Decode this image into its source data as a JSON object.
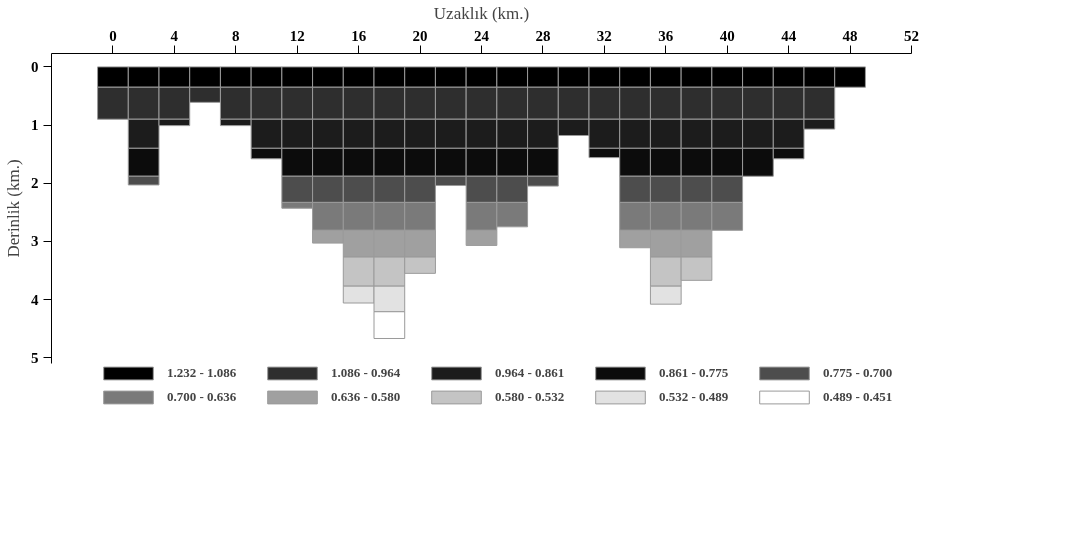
{
  "chart_data": {
    "type": "bar",
    "stacked": true,
    "xlabel": "Uzaklık (km.)",
    "ylabel": "Derinlik (km.)",
    "x": [
      0,
      2,
      4,
      6,
      8,
      10,
      12,
      14,
      16,
      18,
      20,
      22,
      24,
      26,
      28,
      30,
      32,
      34,
      36,
      38,
      40,
      42,
      44,
      46,
      48
    ],
    "xlim": [
      -4,
      52
    ],
    "xticks": [
      0,
      4,
      8,
      12,
      16,
      20,
      24,
      28,
      32,
      36,
      40,
      44,
      48,
      52
    ],
    "ylim": [
      5.1,
      -0.23
    ],
    "yticks": [
      0,
      1,
      2,
      3,
      4,
      5
    ],
    "grid": false,
    "legend": "bottom",
    "series": [
      {
        "name": "1.232 - 1.086",
        "color": "#000000",
        "values": [
          0.35,
          0.35,
          0.35,
          0.35,
          0.35,
          0.35,
          0.35,
          0.35,
          0.35,
          0.35,
          0.35,
          0.35,
          0.35,
          0.35,
          0.35,
          0.35,
          0.35,
          0.35,
          0.35,
          0.35,
          0.35,
          0.35,
          0.35,
          0.35,
          0.35
        ]
      },
      {
        "name": "1.086 - 0.964",
        "color": "#2e2e2e",
        "values": [
          0.55,
          0.55,
          0.55,
          0.26,
          0.55,
          0.55,
          0.55,
          0.55,
          0.55,
          0.55,
          0.55,
          0.55,
          0.55,
          0.55,
          0.55,
          0.55,
          0.55,
          0.55,
          0.55,
          0.55,
          0.55,
          0.55,
          0.55,
          0.55,
          null
        ]
      },
      {
        "name": "0.964 - 0.861",
        "color": "#1c1c1c",
        "values": [
          null,
          0.5,
          0.11,
          null,
          0.11,
          0.5,
          0.5,
          0.5,
          0.5,
          0.5,
          0.5,
          0.5,
          0.5,
          0.5,
          0.5,
          0.28,
          0.5,
          0.5,
          0.5,
          0.5,
          0.5,
          0.5,
          0.5,
          0.17,
          null
        ]
      },
      {
        "name": "0.861 - 0.775",
        "color": "#0c0c0c",
        "values": [
          null,
          0.48,
          null,
          null,
          null,
          0.18,
          0.48,
          0.48,
          0.48,
          0.48,
          0.48,
          0.48,
          0.48,
          0.48,
          0.48,
          null,
          0.16,
          0.48,
          0.48,
          0.48,
          0.48,
          0.48,
          0.18,
          null,
          null
        ]
      },
      {
        "name": "0.775 - 0.700",
        "color": "#4d4d4d",
        "values": [
          null,
          0.15,
          null,
          null,
          null,
          null,
          0.45,
          0.45,
          0.45,
          0.45,
          0.45,
          0.16,
          0.45,
          0.45,
          0.17,
          null,
          null,
          0.45,
          0.45,
          0.45,
          0.45,
          null,
          null,
          null,
          null
        ]
      },
      {
        "name": "0.700 - 0.636",
        "color": "#7a7a7a",
        "values": [
          null,
          null,
          null,
          null,
          null,
          null,
          0.1,
          0.48,
          0.48,
          0.48,
          0.48,
          null,
          0.48,
          0.42,
          null,
          null,
          null,
          0.48,
          0.48,
          0.48,
          0.48,
          null,
          null,
          null,
          null
        ]
      },
      {
        "name": "0.636 - 0.580",
        "color": "#a0a0a0",
        "values": [
          null,
          null,
          null,
          null,
          null,
          null,
          null,
          0.22,
          0.46,
          0.46,
          0.46,
          null,
          0.26,
          null,
          null,
          null,
          null,
          0.3,
          0.46,
          0.46,
          null,
          null,
          null,
          null,
          null
        ]
      },
      {
        "name": "0.580 - 0.532",
        "color": "#c4c4c4",
        "values": [
          null,
          null,
          null,
          null,
          null,
          null,
          null,
          null,
          0.5,
          0.5,
          0.28,
          null,
          null,
          null,
          null,
          null,
          null,
          null,
          0.5,
          0.4,
          null,
          null,
          null,
          null,
          null
        ]
      },
      {
        "name": "0.532 - 0.489",
        "color": "#e2e2e2",
        "values": [
          null,
          null,
          null,
          null,
          null,
          null,
          null,
          null,
          0.29,
          0.44,
          null,
          null,
          null,
          null,
          null,
          null,
          null,
          null,
          0.31,
          null,
          null,
          null,
          null,
          null,
          null
        ]
      },
      {
        "name": "0.489 - 0.451",
        "color": "#ffffff",
        "values": [
          null,
          null,
          null,
          null,
          null,
          null,
          null,
          null,
          null,
          0.46,
          null,
          null,
          null,
          null,
          null,
          null,
          null,
          null,
          null,
          null,
          null,
          null,
          null,
          null,
          null
        ]
      }
    ]
  }
}
